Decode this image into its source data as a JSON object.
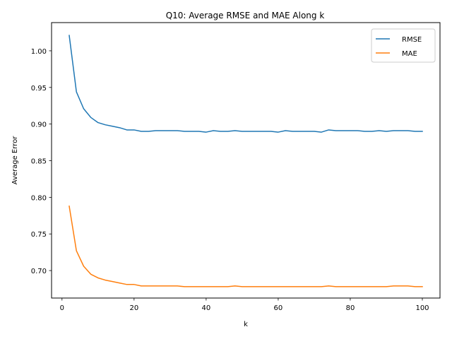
{
  "chart_data": {
    "type": "line",
    "title": "Q10: Average RMSE and MAE Along k",
    "xlabel": "k",
    "ylabel": "Average Error",
    "xlim": [
      -2.9,
      104.9
    ],
    "ylim": [
      0.6625,
      1.0385
    ],
    "xticks": [
      "0",
      "20",
      "40",
      "60",
      "80",
      "100"
    ],
    "yticks": [
      "0.70",
      "0.75",
      "0.80",
      "0.85",
      "0.90",
      "0.95",
      "1.00"
    ],
    "grid": false,
    "legend_position": "top-right",
    "x": [
      2,
      4,
      6,
      8,
      10,
      12,
      14,
      16,
      18,
      20,
      22,
      24,
      26,
      28,
      30,
      32,
      34,
      36,
      38,
      40,
      42,
      44,
      46,
      48,
      50,
      52,
      54,
      56,
      58,
      60,
      62,
      64,
      66,
      68,
      70,
      72,
      74,
      76,
      78,
      80,
      82,
      84,
      86,
      88,
      90,
      92,
      94,
      96,
      98,
      100
    ],
    "series": [
      {
        "name": "RMSE",
        "color": "#1f77b4",
        "values": [
          1.021,
          0.944,
          0.921,
          0.909,
          0.902,
          0.899,
          0.897,
          0.895,
          0.892,
          0.892,
          0.89,
          0.89,
          0.891,
          0.891,
          0.891,
          0.891,
          0.89,
          0.89,
          0.89,
          0.889,
          0.891,
          0.89,
          0.89,
          0.891,
          0.89,
          0.89,
          0.89,
          0.89,
          0.89,
          0.889,
          0.891,
          0.89,
          0.89,
          0.89,
          0.89,
          0.889,
          0.892,
          0.891,
          0.891,
          0.891,
          0.891,
          0.89,
          0.89,
          0.891,
          0.89,
          0.891,
          0.891,
          0.891,
          0.89,
          0.89
        ]
      },
      {
        "name": "MAE",
        "color": "#ff7f0e",
        "values": [
          0.788,
          0.727,
          0.706,
          0.695,
          0.69,
          0.687,
          0.685,
          0.683,
          0.681,
          0.681,
          0.679,
          0.679,
          0.679,
          0.679,
          0.679,
          0.679,
          0.678,
          0.678,
          0.678,
          0.678,
          0.678,
          0.678,
          0.678,
          0.679,
          0.678,
          0.678,
          0.678,
          0.678,
          0.678,
          0.678,
          0.678,
          0.678,
          0.678,
          0.678,
          0.678,
          0.678,
          0.679,
          0.678,
          0.678,
          0.678,
          0.678,
          0.678,
          0.678,
          0.678,
          0.678,
          0.679,
          0.679,
          0.679,
          0.678,
          0.678
        ]
      }
    ]
  }
}
